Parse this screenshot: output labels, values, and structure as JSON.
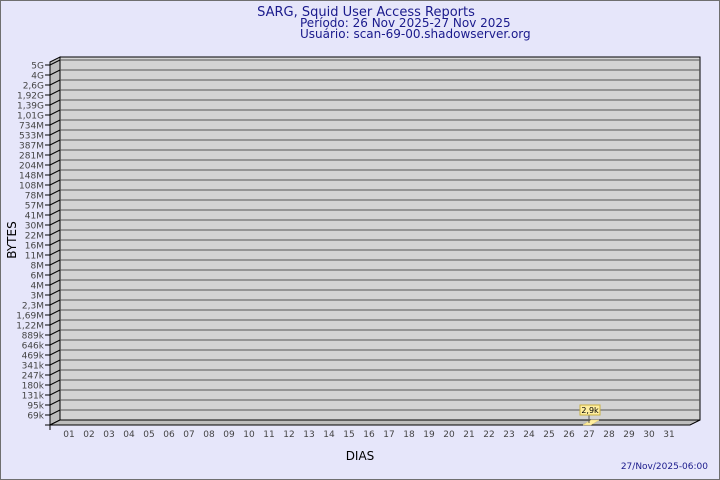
{
  "header": {
    "title": "SARG, Squid User Access Reports",
    "period": "Período: 26 Nov 2025-27 Nov 2025",
    "user": "Usuário: scan-69-00.shadowserver.org"
  },
  "footer": {
    "timestamp": "27/Nov/2025-06:00"
  },
  "colors": {
    "background": "#e6e6fa",
    "plot": "#d3d3d3",
    "text": "#1a1a8c",
    "bar": "#ffeea0"
  },
  "chart_data": {
    "type": "bar",
    "xlabel": "DIAS",
    "ylabel": "BYTES",
    "y_scale": "log",
    "grid": true,
    "x_ticks": [
      "01",
      "02",
      "03",
      "04",
      "05",
      "06",
      "07",
      "08",
      "09",
      "10",
      "11",
      "12",
      "13",
      "14",
      "15",
      "16",
      "17",
      "18",
      "19",
      "20",
      "21",
      "22",
      "23",
      "24",
      "25",
      "26",
      "27",
      "28",
      "29",
      "30",
      "31"
    ],
    "y_ticks": [
      "5G",
      "4G",
      "2,6G",
      "1,92G",
      "1,39G",
      "1,01G",
      "734M",
      "533M",
      "387M",
      "281M",
      "204M",
      "148M",
      "108M",
      "78M",
      "57M",
      "41M",
      "30M",
      "22M",
      "16M",
      "11M",
      "8M",
      "6M",
      "4M",
      "3M",
      "2,3M",
      "1,69M",
      "1,22M",
      "889k",
      "646k",
      "469k",
      "341k",
      "247k",
      "180k",
      "131k",
      "95k",
      "69k"
    ],
    "categories": [
      "27"
    ],
    "values": [
      2900
    ],
    "data_labels": [
      "2,9k"
    ]
  }
}
